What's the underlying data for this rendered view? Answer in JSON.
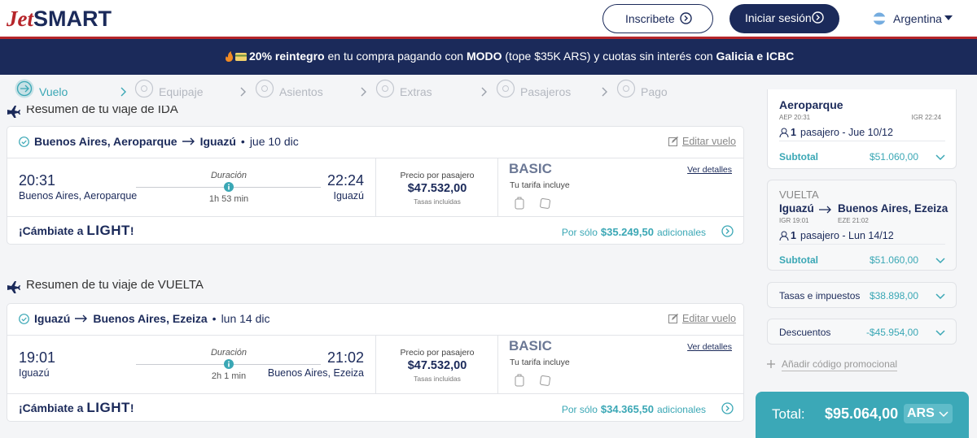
{
  "header": {
    "logo_jet": "Jet",
    "logo_smart": "SMART",
    "signup": "Inscribete",
    "login": "Iniciar sesión",
    "country": "Argentina"
  },
  "banner": {
    "parts": [
      {
        "text": "20% reintegro",
        "bold": true
      },
      {
        "text": " en tu compra pagando con ",
        "bold": false
      },
      {
        "text": "MODO",
        "bold": true
      },
      {
        "text": " (tope $35K ARS) y cuotas sin interés con ",
        "bold": false
      },
      {
        "text": "Galicia e ICBC",
        "bold": true
      }
    ]
  },
  "steps": [
    "Vuelo",
    "Equipaje",
    "Asientos",
    "Extras",
    "Pasajeros",
    "Pago"
  ],
  "flights": [
    {
      "section_title": "Resumen de tu viaje de IDA",
      "origin": "Buenos Aires, Aeroparque",
      "destination": "Iguazú",
      "separator": "•",
      "date": "jue 10 dic",
      "edit": "Editar vuelo",
      "departure_time": "20:31",
      "departure_city": "Buenos Aires, Aeroparque",
      "duration_label": "Duración",
      "duration": "1h 53 min",
      "arrival_time": "22:24",
      "arrival_city": "Iguazú",
      "price_label": "Precio por pasajero",
      "price": "$47.532,00",
      "taxes_note": "Tasas incluidas",
      "fare": "BASIC",
      "fare_includes": "Tu tarifa incluye",
      "details": "Ver detalles",
      "upgrade_prefix": "¡Cámbiate a",
      "upgrade_fare": "LIGHT",
      "upgrade_suffix": "!",
      "offer_prefix": "Por sólo",
      "offer_price": "$35.249,50",
      "offer_suffix": "adicionales"
    },
    {
      "section_title": "Resumen de tu viaje de VUELTA",
      "origin": "Iguazú",
      "destination": "Buenos Aires, Ezeiza",
      "separator": "•",
      "date": "lun 14 dic",
      "edit": "Editar vuelo",
      "departure_time": "19:01",
      "departure_city": "Iguazú",
      "duration_label": "Duración",
      "duration": "2h 1 min",
      "arrival_time": "21:02",
      "arrival_city": "Buenos Aires, Ezeiza",
      "price_label": "Precio por pasajero",
      "price": "$47.532,00",
      "taxes_note": "Tasas incluidas",
      "fare": "BASIC",
      "fare_includes": "Tu tarifa incluye",
      "details": "Ver detalles",
      "upgrade_prefix": "¡Cámbiate a",
      "upgrade_fare": "LIGHT",
      "upgrade_suffix": "!",
      "offer_prefix": "Por sólo",
      "offer_price": "$34.365,50",
      "offer_suffix": "adicionales"
    }
  ],
  "summary": {
    "legs": [
      {
        "destination": "Aeroparque",
        "departure_code": "AEP 20:31",
        "arrival_code": "IGR 22:24",
        "passengers_count": "1",
        "passengers_text": "pasajero - Jue 10/12",
        "subtotal_label": "Subtotal",
        "subtotal": "$51.060,00"
      },
      {
        "direction": "VUELTA",
        "origin": "Iguazú",
        "destination": "Buenos Aires, Ezeiza",
        "departure_code": "IGR 19:01",
        "arrival_code": "EZE 21:02",
        "passengers_count": "1",
        "passengers_text": "pasajero - Lun 14/12",
        "subtotal_label": "Subtotal",
        "subtotal": "$51.060,00"
      }
    ],
    "taxes": {
      "label": "Tasas e impuestos",
      "value": "$38.898,00"
    },
    "discounts": {
      "label": "Descuentos",
      "value": "-$45.954,00"
    },
    "promo": "Añadir código promocional",
    "total": {
      "label": "Total:",
      "value": "$95.064,00",
      "currency": "ARS"
    }
  }
}
